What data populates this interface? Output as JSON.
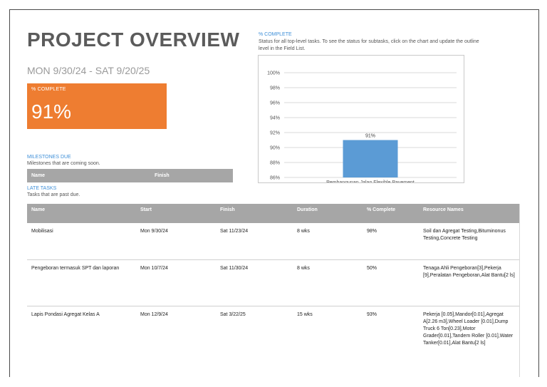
{
  "report": {
    "title": "PROJECT OVERVIEW",
    "date_range": "MON 9/30/24 -  SAT 9/20/25"
  },
  "percent_complete": {
    "label": "% COMPLETE",
    "value": "91%"
  },
  "milestones": {
    "title": "MILESTONES DUE",
    "subtitle": "Milestones that are coming soon.",
    "columns": [
      "Name",
      "Finish"
    ]
  },
  "late_tasks": {
    "title": "LATE TASKS",
    "subtitle": "Tasks that are past due.",
    "columns": [
      "Name",
      "Start",
      "Finish",
      "Duration",
      "% Complete",
      "Resource Names"
    ],
    "rows": [
      {
        "name": "Mobilisasi",
        "start": "Mon 9/30/24",
        "finish": "Sat 11/23/24",
        "duration": "8 wks",
        "complete": "98%",
        "resources": "Soil dan Agregat Testing,Bituminonus Testing,Concrete Testing"
      },
      {
        "name": "Pengeboran termasuk SPT dan laporan",
        "start": "Mon 10/7/24",
        "finish": "Sat 11/30/24",
        "duration": "8 wks",
        "complete": "50%",
        "resources": "Tenaga Ahli Pengeboran[3],Pekerja [9],Peralatan Pengeboran,Alat Bantu[2 ls]"
      },
      {
        "name": "Lapis Pondasi Agregat Kelas A",
        "start": "Mon 12/9/24",
        "finish": "Sat 3/22/25",
        "duration": "15 wks",
        "complete": "93%",
        "resources": "Pekerja [0.05],Mandor[0.01],Agregat A[2.26 m3],Wheel Loader [0.01],Dump Truck 6 Ton[0.23],Motor Grader[0.01],Tandem Roller [0.01],Water Tanker[0.01],Alat Bantu[2 ls]"
      }
    ]
  },
  "chart_section": {
    "title": "% COMPLETE",
    "description": "Status for all top-level tasks. To see the status for subtasks, click on the chart and update the outline level in the Field List."
  },
  "chart_data": {
    "type": "bar",
    "categories": [
      "Pembangunan Jalan Flexible Pavement"
    ],
    "values": [
      91
    ],
    "data_labels": [
      "91%"
    ],
    "ylim": [
      86,
      100
    ],
    "yticks": [
      86,
      88,
      90,
      92,
      94,
      96,
      98,
      100
    ],
    "ytick_labels": [
      "86%",
      "88%",
      "90%",
      "92%",
      "94%",
      "96%",
      "98%",
      "100%"
    ],
    "bar_color": "#5b9bd5",
    "grid": true,
    "legend": "none"
  },
  "colors": {
    "accent_orange": "#ee7d31",
    "header_gray": "#a6a6a6",
    "section_blue": "#3e8fd8"
  }
}
